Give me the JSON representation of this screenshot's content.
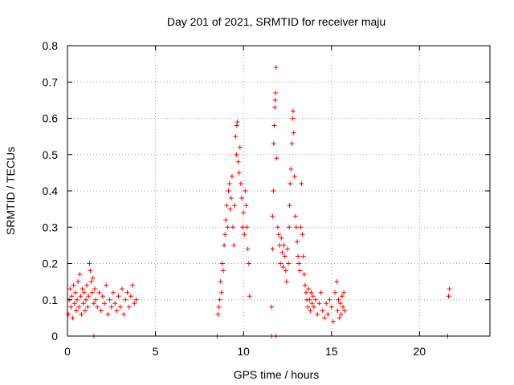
{
  "chart_data": {
    "type": "scatter",
    "title": "Day 201 of 2021, SRMTID for receiver maju",
    "xlabel": "GPS time / hours",
    "ylabel": "SRMTID / TECUs",
    "xlim": [
      0,
      24
    ],
    "ylim": [
      0,
      0.8
    ],
    "x_ticks": [
      0,
      5,
      10,
      15,
      20
    ],
    "x_tick_labels": [
      "0",
      "5",
      "10",
      "15",
      "20"
    ],
    "y_ticks": [
      0,
      0.1,
      0.2,
      0.3,
      0.4,
      0.5,
      0.6,
      0.7,
      0.8
    ],
    "y_tick_labels": [
      "0",
      "0.1",
      "0.2",
      "0.3",
      "0.4",
      "0.5",
      "0.6",
      "0.7",
      "0.8"
    ],
    "grid": true,
    "marker": "+",
    "series_color": "#ff0000",
    "series": [
      {
        "name": "SRMTID",
        "points": [
          [
            0.05,
            0.06
          ],
          [
            0.1,
            0.1
          ],
          [
            0.15,
            0.13
          ],
          [
            0.2,
            0.08
          ],
          [
            0.25,
            0.11
          ],
          [
            0.3,
            0.05
          ],
          [
            0.35,
            0.14
          ],
          [
            0.4,
            0.09
          ],
          [
            0.45,
            0.12
          ],
          [
            0.5,
            0.07
          ],
          [
            0.55,
            0.1
          ],
          [
            0.6,
            0.15
          ],
          [
            0.65,
            0.08
          ],
          [
            0.7,
            0.17
          ],
          [
            0.75,
            0.11
          ],
          [
            0.8,
            0.06
          ],
          [
            0.85,
            0.13
          ],
          [
            0.9,
            0.09
          ],
          [
            0.95,
            0.12
          ],
          [
            1.0,
            0.07
          ],
          [
            1.05,
            0.1
          ],
          [
            1.1,
            0.14
          ],
          [
            1.15,
            0.08
          ],
          [
            1.2,
            0.11
          ],
          [
            1.25,
            0.2
          ],
          [
            1.3,
            0.18
          ],
          [
            1.35,
            0.15
          ],
          [
            1.4,
            0.12
          ],
          [
            1.45,
            0.16
          ],
          [
            1.5,
            0.09
          ],
          [
            1.55,
            0.13
          ],
          [
            1.6,
            0.1
          ],
          [
            1.7,
            0.08
          ],
          [
            1.8,
            0.12
          ],
          [
            1.9,
            0.07
          ],
          [
            2.0,
            0.11
          ],
          [
            2.1,
            0.09
          ],
          [
            2.2,
            0.14
          ],
          [
            2.3,
            0.06
          ],
          [
            2.4,
            0.1
          ],
          [
            2.5,
            0.08
          ],
          [
            2.6,
            0.12
          ],
          [
            2.7,
            0.09
          ],
          [
            2.8,
            0.07
          ],
          [
            2.9,
            0.11
          ],
          [
            3.0,
            0.08
          ],
          [
            3.1,
            0.13
          ],
          [
            3.2,
            0.06
          ],
          [
            3.3,
            0.1
          ],
          [
            3.4,
            0.12
          ],
          [
            3.5,
            0.08
          ],
          [
            3.6,
            0.11
          ],
          [
            3.7,
            0.14
          ],
          [
            3.8,
            0.09
          ],
          [
            3.9,
            0.1
          ],
          [
            1.5,
            0.0
          ],
          [
            8.5,
            0.0
          ],
          [
            11.6,
            0.0
          ],
          [
            11.85,
            0.0
          ],
          [
            21.6,
            0.0
          ],
          [
            8.55,
            0.06
          ],
          [
            8.6,
            0.08
          ],
          [
            8.65,
            0.1
          ],
          [
            8.7,
            0.15
          ],
          [
            8.75,
            0.12
          ],
          [
            8.8,
            0.2
          ],
          [
            8.85,
            0.18
          ],
          [
            8.9,
            0.25
          ],
          [
            8.95,
            0.28
          ],
          [
            9.0,
            0.32
          ],
          [
            9.05,
            0.36
          ],
          [
            9.1,
            0.3
          ],
          [
            9.15,
            0.4
          ],
          [
            9.2,
            0.42
          ],
          [
            9.25,
            0.35
          ],
          [
            9.3,
            0.38
          ],
          [
            9.35,
            0.44
          ],
          [
            9.4,
            0.3
          ],
          [
            9.45,
            0.25
          ],
          [
            9.5,
            0.36
          ],
          [
            9.55,
            0.55
          ],
          [
            9.6,
            0.5
          ],
          [
            9.62,
            0.58
          ],
          [
            9.65,
            0.59
          ],
          [
            9.7,
            0.48
          ],
          [
            9.75,
            0.45
          ],
          [
            9.8,
            0.52
          ],
          [
            9.85,
            0.42
          ],
          [
            9.9,
            0.38
          ],
          [
            9.95,
            0.3
          ],
          [
            10.0,
            0.34
          ],
          [
            10.05,
            0.28
          ],
          [
            10.1,
            0.4
          ],
          [
            10.15,
            0.36
          ],
          [
            10.2,
            0.3
          ],
          [
            10.25,
            0.24
          ],
          [
            10.3,
            0.2
          ],
          [
            10.35,
            0.11
          ],
          [
            11.6,
            0.08
          ],
          [
            11.65,
            0.24
          ],
          [
            11.65,
            0.33
          ],
          [
            11.7,
            0.4
          ],
          [
            11.72,
            0.53
          ],
          [
            11.75,
            0.58
          ],
          [
            11.78,
            0.63
          ],
          [
            11.8,
            0.65
          ],
          [
            11.82,
            0.67
          ],
          [
            11.85,
            0.74
          ],
          [
            11.88,
            0.49
          ],
          [
            11.95,
            0.3
          ],
          [
            12.0,
            0.28
          ],
          [
            12.05,
            0.25
          ],
          [
            12.1,
            0.2
          ],
          [
            12.15,
            0.27
          ],
          [
            12.2,
            0.23
          ],
          [
            12.25,
            0.19
          ],
          [
            12.3,
            0.25
          ],
          [
            12.35,
            0.22
          ],
          [
            12.4,
            0.18
          ],
          [
            12.45,
            0.15
          ],
          [
            12.5,
            0.24
          ],
          [
            12.55,
            0.2
          ],
          [
            12.6,
            0.3
          ],
          [
            12.62,
            0.36
          ],
          [
            12.65,
            0.42
          ],
          [
            12.7,
            0.46
          ],
          [
            12.75,
            0.53
          ],
          [
            12.8,
            0.6
          ],
          [
            12.82,
            0.62
          ],
          [
            12.85,
            0.56
          ],
          [
            12.9,
            0.44
          ],
          [
            12.95,
            0.33
          ],
          [
            13.0,
            0.3
          ],
          [
            13.05,
            0.26
          ],
          [
            13.1,
            0.22
          ],
          [
            13.15,
            0.2
          ],
          [
            13.2,
            0.18
          ],
          [
            13.25,
            0.3
          ],
          [
            13.3,
            0.42
          ],
          [
            13.35,
            0.28
          ],
          [
            13.4,
            0.22
          ],
          [
            13.45,
            0.17
          ],
          [
            13.5,
            0.14
          ],
          [
            13.55,
            0.12
          ],
          [
            13.6,
            0.1
          ],
          [
            13.65,
            0.08
          ],
          [
            13.7,
            0.13
          ],
          [
            13.75,
            0.1
          ],
          [
            13.8,
            0.07
          ],
          [
            13.85,
            0.12
          ],
          [
            13.9,
            0.09
          ],
          [
            13.95,
            0.11
          ],
          [
            14.0,
            0.08
          ],
          [
            14.1,
            0.1
          ],
          [
            14.2,
            0.06
          ],
          [
            14.3,
            0.09
          ],
          [
            14.4,
            0.12
          ],
          [
            14.5,
            0.07
          ],
          [
            14.6,
            0.05
          ],
          [
            14.7,
            0.09
          ],
          [
            14.8,
            0.06
          ],
          [
            14.9,
            0.1
          ],
          [
            15.0,
            0.08
          ],
          [
            15.1,
            0.04
          ],
          [
            15.2,
            0.12
          ],
          [
            15.3,
            0.15
          ],
          [
            15.35,
            0.07
          ],
          [
            15.4,
            0.1
          ],
          [
            15.45,
            0.05
          ],
          [
            15.5,
            0.09
          ],
          [
            15.55,
            0.06
          ],
          [
            15.6,
            0.11
          ],
          [
            15.65,
            0.08
          ],
          [
            15.7,
            0.12
          ],
          [
            15.75,
            0.07
          ],
          [
            21.65,
            0.11
          ],
          [
            21.7,
            0.13
          ]
        ]
      }
    ]
  }
}
